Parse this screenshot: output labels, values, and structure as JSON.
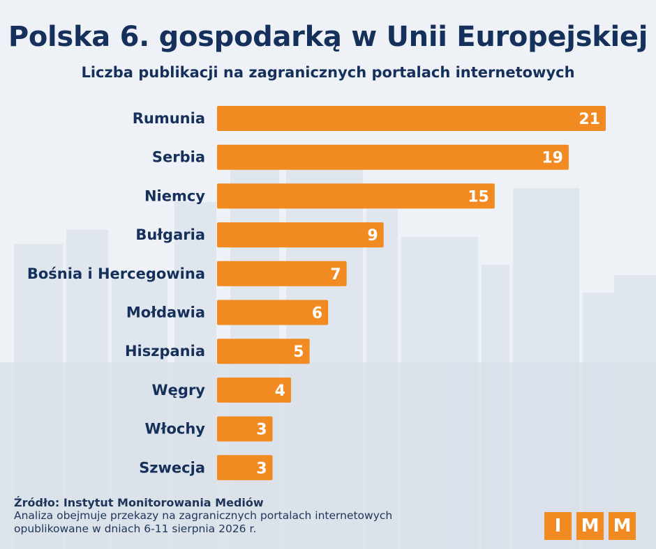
{
  "header": {
    "title": "Polska 6. gospodarką w Unii Europejskiej",
    "subtitle": "Liczba publikacji na zagranicznych portalach internetowych"
  },
  "footer": {
    "source": "Źródło: Instytut Monitorowania Mediów",
    "note": "Analiza obejmuje przekazy na zagranicznych portalach internetowych opublikowane w dniach 6-11 sierpnia 2026 r."
  },
  "logo": {
    "letters": [
      "I",
      "M",
      "M"
    ]
  },
  "colors": {
    "bar": "#f28a22",
    "text": "#15305a",
    "value_label": "#ffffff",
    "background": "#eef2f6"
  },
  "chart_data": {
    "type": "bar",
    "orientation": "horizontal",
    "title": "Polska 6. gospodarką w Unii Europejskiej",
    "subtitle": "Liczba publikacji na zagranicznych portalach internetowych",
    "categories": [
      "Rumunia",
      "Serbia",
      "Niemcy",
      "Bułgaria",
      "Bośnia i Hercegowina",
      "Mołdawia",
      "Hiszpania",
      "Węgry",
      "Włochy",
      "Szwecja"
    ],
    "values": [
      21,
      19,
      15,
      9,
      7,
      6,
      5,
      4,
      3,
      3
    ],
    "data_labels": true,
    "axes_visible": false,
    "grid": false,
    "legend": false
  }
}
